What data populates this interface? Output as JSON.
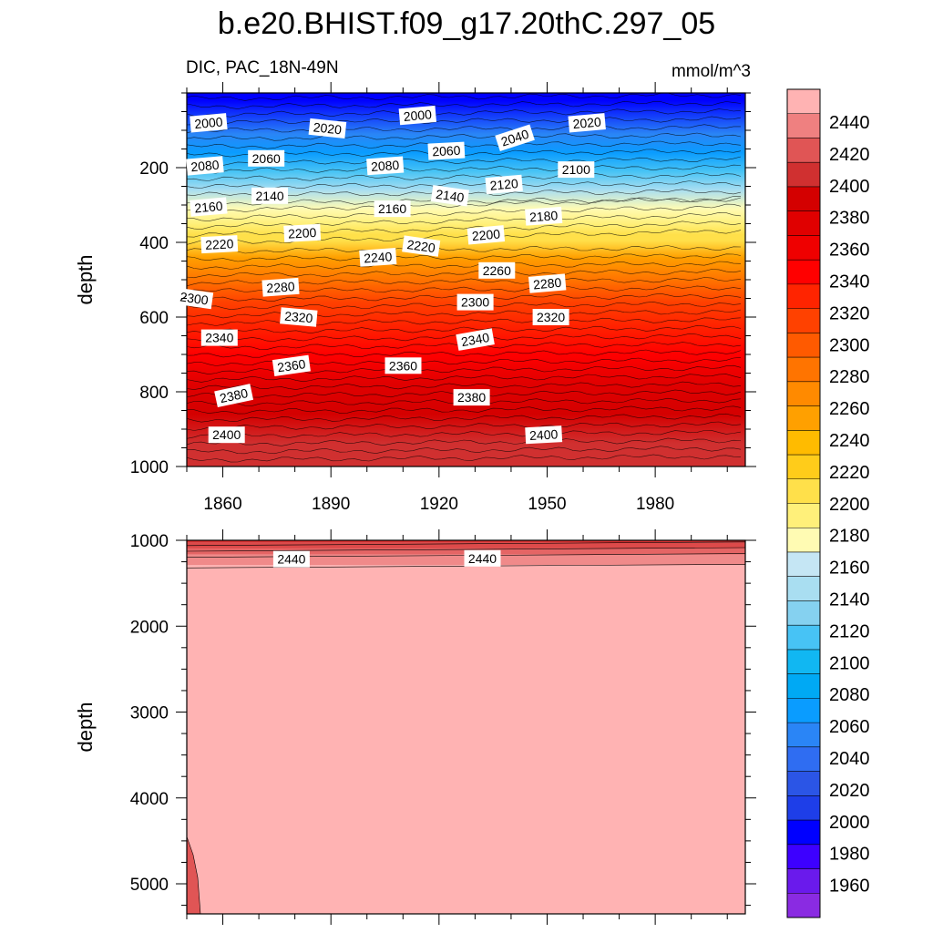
{
  "title": "b.e20.BHIST.f09_g17.20thC.297_05",
  "subtitle_left": "DIC, PAC_18N-49N",
  "units": "mmol/m^3",
  "chart_data": {
    "type": "contour",
    "variable": "DIC",
    "region": "PAC_18N-49N",
    "units": "mmol/m^3",
    "x": {
      "label": "",
      "range": [
        1850,
        2005
      ],
      "ticks": [
        1860,
        1890,
        1920,
        1950,
        1980
      ]
    },
    "panels": [
      {
        "name": "upper",
        "ylabel": "depth",
        "ylim": [
          0,
          1000
        ],
        "yticks": [
          200,
          400,
          600,
          800,
          1000
        ],
        "color_by_depth": [
          {
            "depth": 0,
            "value": 1990
          },
          {
            "depth": 20,
            "value": 1990
          },
          {
            "depth": 110,
            "value": 2040
          },
          {
            "depth": 160,
            "value": 2060
          },
          {
            "depth": 210,
            "value": 2100
          },
          {
            "depth": 260,
            "value": 2140
          },
          {
            "depth": 310,
            "value": 2170
          },
          {
            "depth": 350,
            "value": 2190
          },
          {
            "depth": 380,
            "value": 2200
          },
          {
            "depth": 395,
            "value": 2210
          },
          {
            "depth": 440,
            "value": 2240
          },
          {
            "depth": 500,
            "value": 2280
          },
          {
            "depth": 560,
            "value": 2310
          },
          {
            "depth": 620,
            "value": 2330
          },
          {
            "depth": 700,
            "value": 2355
          },
          {
            "depth": 780,
            "value": 2375
          },
          {
            "depth": 860,
            "value": 2395
          },
          {
            "depth": 940,
            "value": 2405
          },
          {
            "depth": 1000,
            "value": 2410
          }
        ],
        "contour_labels": [
          {
            "text": "2000",
            "year": 1852,
            "depth": 80,
            "rot": -5
          },
          {
            "text": "2000",
            "year": 1910,
            "depth": 60,
            "rot": -5
          },
          {
            "text": "2020",
            "year": 1885,
            "depth": 95,
            "rot": 6
          },
          {
            "text": "2020",
            "year": 1957,
            "depth": 80,
            "rot": -5
          },
          {
            "text": "2040",
            "year": 1937,
            "depth": 120,
            "rot": -18
          },
          {
            "text": "2060",
            "year": 1868,
            "depth": 175,
            "rot": 0
          },
          {
            "text": "2060",
            "year": 1918,
            "depth": 155,
            "rot": -3
          },
          {
            "text": "2080",
            "year": 1851,
            "depth": 195,
            "rot": -5
          },
          {
            "text": "2080",
            "year": 1901,
            "depth": 195,
            "rot": -4
          },
          {
            "text": "2100",
            "year": 1954,
            "depth": 205,
            "rot": 0
          },
          {
            "text": "2120",
            "year": 1934,
            "depth": 245,
            "rot": -5
          },
          {
            "text": "2140",
            "year": 1869,
            "depth": 275,
            "rot": 0
          },
          {
            "text": "2140",
            "year": 1919,
            "depth": 275,
            "rot": 8
          },
          {
            "text": "2160",
            "year": 1852,
            "depth": 305,
            "rot": -5
          },
          {
            "text": "2160",
            "year": 1903,
            "depth": 310,
            "rot": 0
          },
          {
            "text": "2180",
            "year": 1945,
            "depth": 330,
            "rot": -4
          },
          {
            "text": "2200",
            "year": 1878,
            "depth": 375,
            "rot": -3
          },
          {
            "text": "2200",
            "year": 1929,
            "depth": 380,
            "rot": -5
          },
          {
            "text": "2220",
            "year": 1855,
            "depth": 405,
            "rot": -3
          },
          {
            "text": "2220",
            "year": 1911,
            "depth": 410,
            "rot": 8
          },
          {
            "text": "2240",
            "year": 1899,
            "depth": 440,
            "rot": -4
          },
          {
            "text": "2260",
            "year": 1932,
            "depth": 475,
            "rot": 0
          },
          {
            "text": "2280",
            "year": 1872,
            "depth": 520,
            "rot": -4
          },
          {
            "text": "2280",
            "year": 1946,
            "depth": 510,
            "rot": -5
          },
          {
            "text": "2300",
            "year": 1848,
            "depth": 550,
            "rot": 8
          },
          {
            "text": "2300",
            "year": 1926,
            "depth": 560,
            "rot": 0
          },
          {
            "text": "2320",
            "year": 1877,
            "depth": 600,
            "rot": 5
          },
          {
            "text": "2320",
            "year": 1947,
            "depth": 600,
            "rot": 0
          },
          {
            "text": "2340",
            "year": 1855,
            "depth": 655,
            "rot": 0
          },
          {
            "text": "2340",
            "year": 1926,
            "depth": 660,
            "rot": -10
          },
          {
            "text": "2360",
            "year": 1875,
            "depth": 730,
            "rot": -8
          },
          {
            "text": "2360",
            "year": 1906,
            "depth": 730,
            "rot": 0
          },
          {
            "text": "2380",
            "year": 1859,
            "depth": 810,
            "rot": -12
          },
          {
            "text": "2380",
            "year": 1925,
            "depth": 815,
            "rot": 0
          },
          {
            "text": "2400",
            "year": 1857,
            "depth": 915,
            "rot": 0
          },
          {
            "text": "2400",
            "year": 1945,
            "depth": 915,
            "rot": -3
          }
        ]
      },
      {
        "name": "lower",
        "ylabel": "depth",
        "ylim": [
          1000,
          5350
        ],
        "yticks": [
          1000,
          2000,
          3000,
          4000,
          5000
        ],
        "contour_labels": [
          {
            "text": "2440",
            "year": 1875,
            "depth": 1220,
            "rot": 0
          },
          {
            "text": "2440",
            "year": 1928,
            "depth": 1210,
            "rot": 0
          }
        ]
      }
    ],
    "colorbar": {
      "levels": [
        1960,
        1980,
        2000,
        2020,
        2040,
        2060,
        2080,
        2100,
        2120,
        2140,
        2160,
        2180,
        2200,
        2220,
        2240,
        2260,
        2280,
        2300,
        2320,
        2340,
        2360,
        2380,
        2400,
        2420,
        2440
      ],
      "colors": [
        "#8a2be2",
        "#6a1aec",
        "#3d00ff",
        "#0000ff",
        "#1e3ee8",
        "#2b55e6",
        "#2f6df2",
        "#2a85f6",
        "#0a9cff",
        "#00a9f4",
        "#11b7f2",
        "#47c3f5",
        "#85d1f0",
        "#a9def1",
        "#c5e6f4",
        "#fffbb3",
        "#fff07a",
        "#ffe04a",
        "#ffcc1a",
        "#ffbb00",
        "#ffa000",
        "#ff8a00",
        "#ff7400",
        "#ff5a00",
        "#ff4100",
        "#ff2400",
        "#ff0000",
        "#ef0000",
        "#e00000",
        "#d40000",
        "#d03030",
        "#e05555",
        "#ef8080",
        "#ffb3b3"
      ]
    }
  }
}
